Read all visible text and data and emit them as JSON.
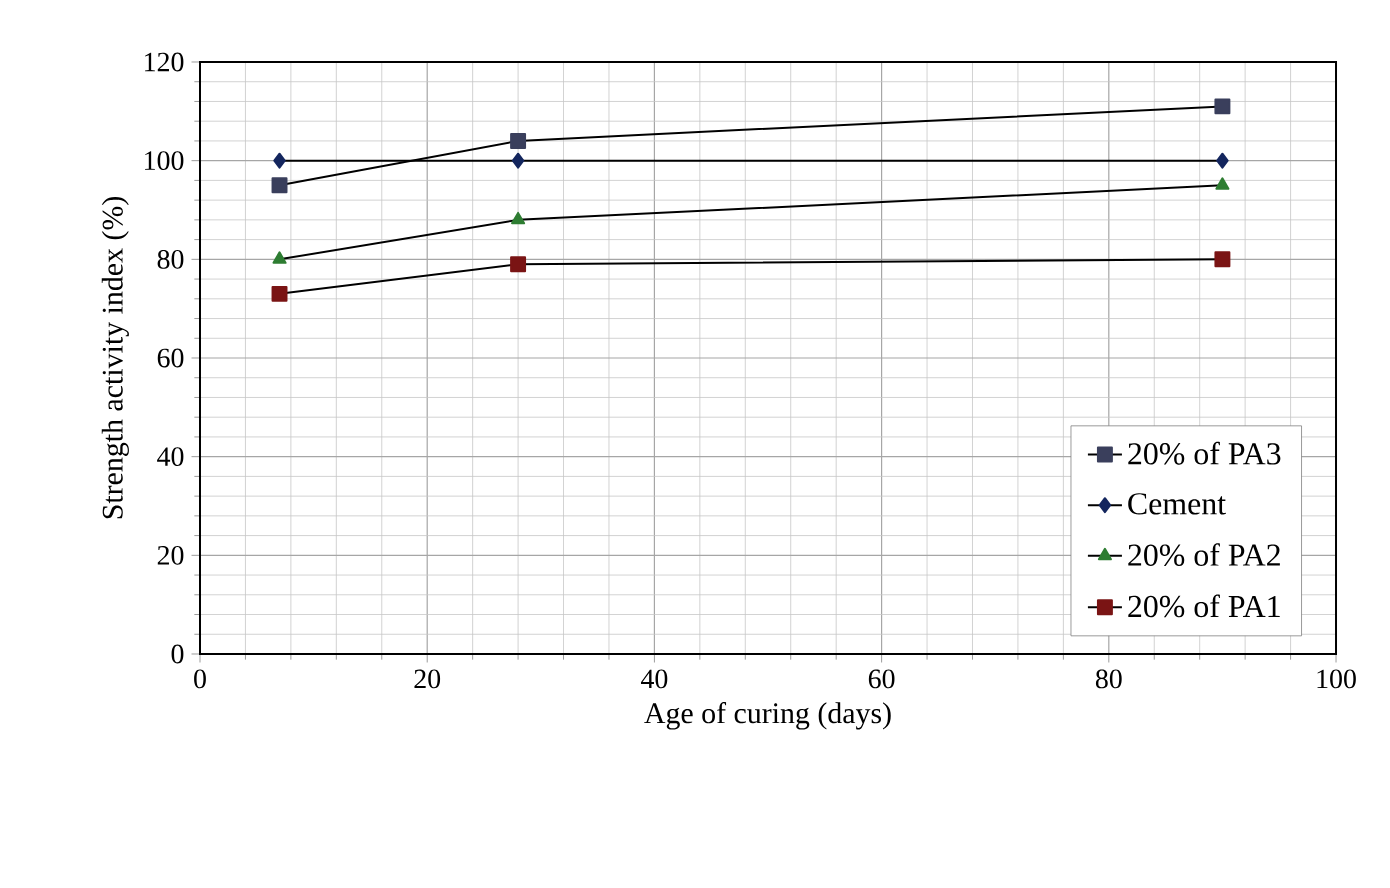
{
  "chart_data": {
    "type": "line",
    "xlabel": "Age of curing (days)",
    "ylabel": "Strength activity  index (%)",
    "x": [
      7,
      28,
      90
    ],
    "series": [
      {
        "name": "20% of PA3",
        "color": "#3a3f5c",
        "marker": "square",
        "values": [
          95,
          104,
          111
        ]
      },
      {
        "name": "Cement",
        "color": "#14265e",
        "marker": "diamond",
        "values": [
          100,
          100,
          100
        ]
      },
      {
        "name": "20% of PA2",
        "color": "#2e7d32",
        "marker": "triangle",
        "values": [
          80,
          88,
          95
        ]
      },
      {
        "name": "20% of PA1",
        "color": "#7a1414",
        "marker": "square",
        "values": [
          73,
          79,
          80
        ]
      }
    ],
    "xlim": [
      0,
      100
    ],
    "ylim": [
      0,
      120
    ],
    "xticks": [
      0,
      20,
      40,
      60,
      80,
      100
    ],
    "yticks": [
      0,
      20,
      40,
      60,
      80,
      100,
      120
    ],
    "grid": true,
    "legend": "bottom right",
    "line_style": "solid"
  }
}
